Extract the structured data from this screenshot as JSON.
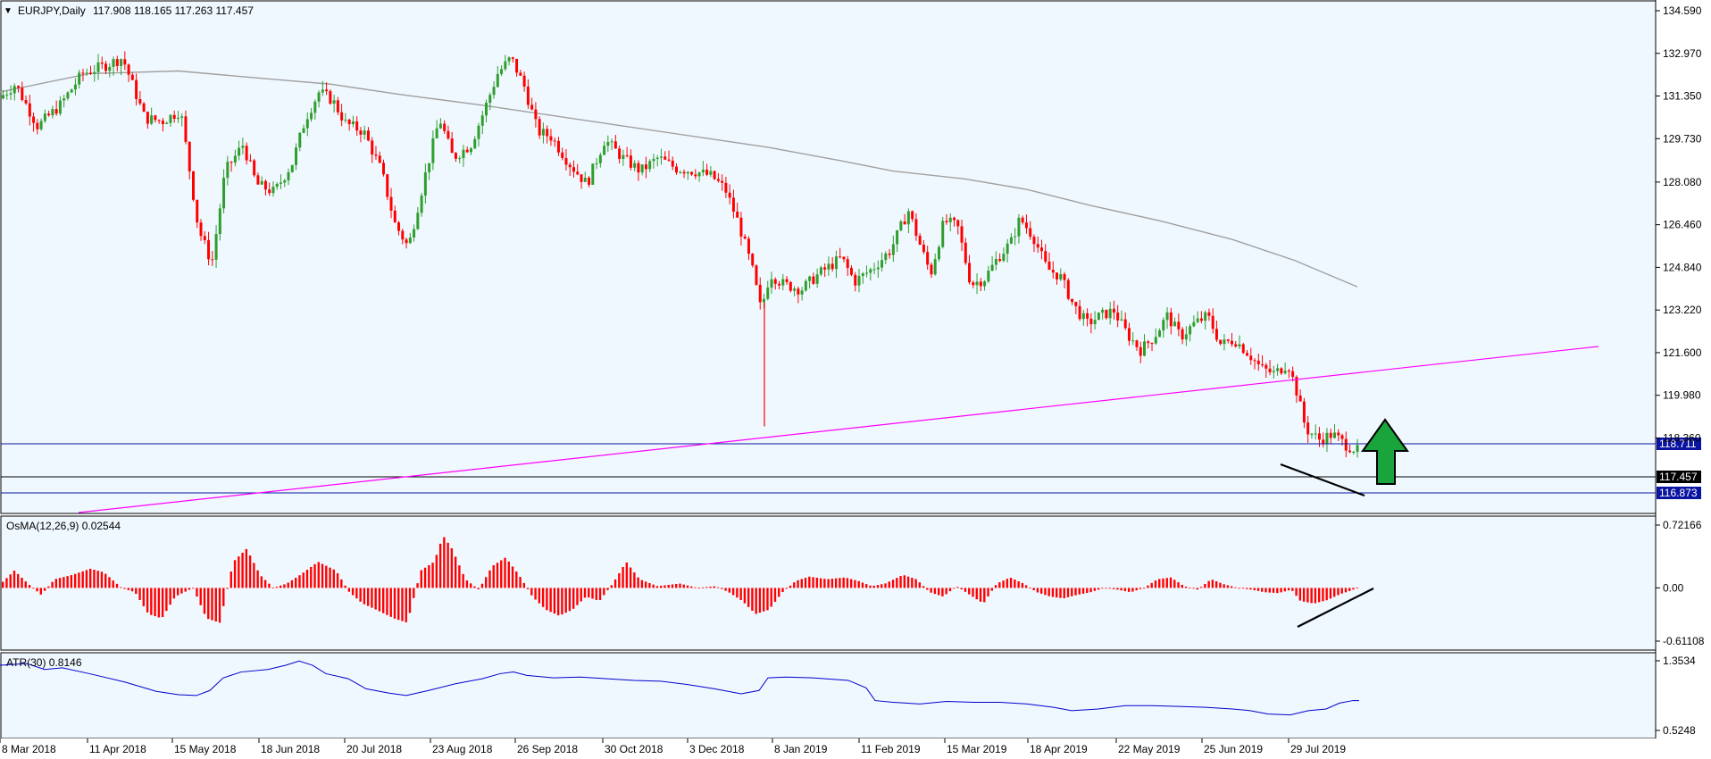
{
  "main": {
    "title_menu": "▼",
    "symbol": "EURJPY,Daily",
    "ohlc": "117.908 118.165 117.263 117.457",
    "price_ticks": [
      "134.590",
      "132.970",
      "131.350",
      "129.730",
      "128.080",
      "126.460",
      "124.840",
      "123.220",
      "121.600",
      "119.980",
      "118.360"
    ],
    "hline_labels": {
      "upper": "118.711",
      "current": "117.457",
      "lower": "116.873"
    },
    "hline_colors": {
      "upper": "#0a14a0",
      "current": "#000000",
      "lower": "#0a14a0"
    }
  },
  "osma": {
    "label": "OsMA(12,26,9) 0.02544",
    "ticks": [
      "0.72166",
      "0.00",
      "-0.61108"
    ]
  },
  "atr": {
    "label": "ATR(30) 0.8146",
    "ticks": [
      "1.3534",
      "0.5248"
    ]
  },
  "date_axis": [
    "8 Mar 2018",
    "11 Apr 2018",
    "15 May 2018",
    "18 Jun 2018",
    "20 Jul 2018",
    "23 Aug 2018",
    "26 Sep 2018",
    "30 Oct 2018",
    "3 Dec 2018",
    "8 Jan 2019",
    "11 Feb 2019",
    "15 Mar 2019",
    "18 Apr 2019",
    "22 May 2019",
    "25 Jun 2019",
    "29 Jul 2019"
  ],
  "colors": {
    "background": "#f0f8ff",
    "bull_candle": "#2e9e2e",
    "bear_candle": "#ff0000",
    "moving_average": "#a0a0a0",
    "trendline": "#ff00ff",
    "osma_bars": "#ff0000",
    "atr_line": "#0000cc",
    "arrow_fill": "#1aa43c"
  },
  "annotations": {
    "arrow": "up-arrow-icon"
  }
}
